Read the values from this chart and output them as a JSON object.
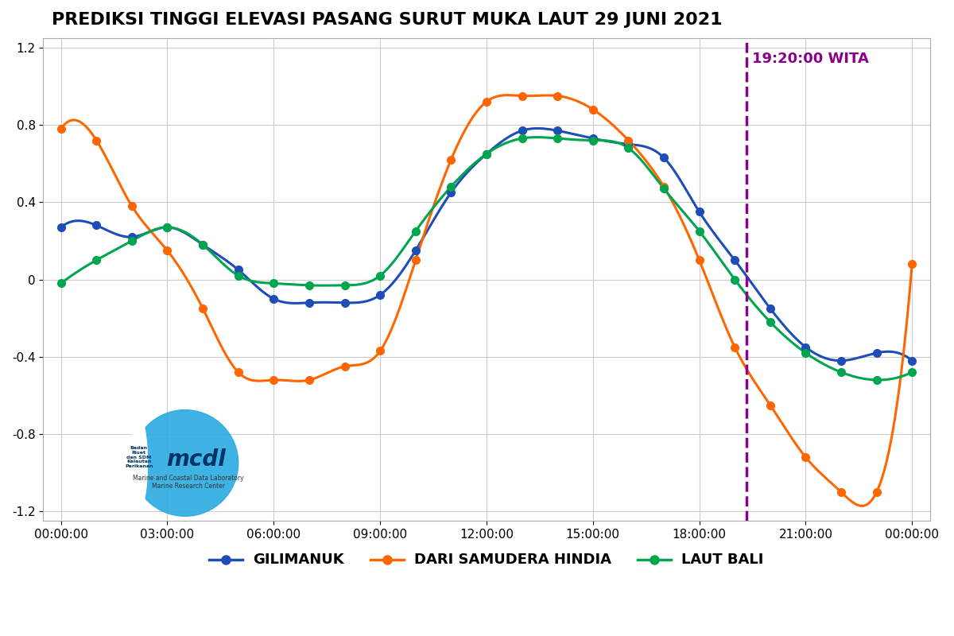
{
  "title": "PREDIKSI TINGGI ELEVASI PASANG SURUT MUKA LAUT 29 JUNI 2021",
  "title_fontsize": 16,
  "xlabel": "",
  "ylabel": "",
  "ylim": [
    -1.25,
    1.25
  ],
  "yticks": [
    -1.2,
    -0.8,
    -0.4,
    0.0,
    0.4,
    0.8,
    1.2
  ],
  "ytick_labels": [
    "-1.2",
    "-0.8",
    "-0.4",
    "0",
    "0.4",
    "0.8",
    "1.2"
  ],
  "xticks": [
    0,
    3,
    6,
    9,
    12,
    15,
    18,
    21,
    24
  ],
  "xtick_labels": [
    "00:00:00",
    "03:00:00",
    "06:00:00",
    "09:00:00",
    "12:00:00",
    "15:00:00",
    "18:00:00",
    "21:00:00",
    "00:00:00"
  ],
  "vline_x": 19.333,
  "vline_label": "19:20:00 WITA",
  "vline_color": "#8B008B",
  "background_color": "#ffffff",
  "grid_color": "#cccccc",
  "legend_labels": [
    "GILIMANUK",
    "DARI SAMUDERA HINDIA",
    "LAUT BALI"
  ],
  "legend_colors": [
    "#1e4db7",
    "#ff6600",
    "#00a550"
  ],
  "gilimanuk_x": [
    0,
    1,
    2,
    3,
    4,
    5,
    6,
    7,
    8,
    9,
    10,
    11,
    12,
    13,
    14,
    15,
    16,
    17,
    18,
    19,
    20,
    21,
    22,
    23,
    24
  ],
  "gilimanuk_y": [
    0.27,
    0.28,
    0.22,
    0.27,
    0.18,
    0.05,
    -0.1,
    -0.12,
    -0.12,
    -0.08,
    0.15,
    0.45,
    0.65,
    0.77,
    0.77,
    0.73,
    0.7,
    0.63,
    0.35,
    0.1,
    -0.15,
    -0.35,
    -0.42,
    -0.38,
    -0.42
  ],
  "samudera_x": [
    0,
    1,
    2,
    3,
    4,
    5,
    6,
    7,
    8,
    9,
    10,
    11,
    12,
    13,
    14,
    15,
    16,
    17,
    18,
    19,
    20,
    21,
    22,
    23,
    24
  ],
  "samudera_y": [
    0.78,
    0.72,
    0.38,
    0.15,
    -0.15,
    -0.48,
    -0.52,
    -0.52,
    -0.45,
    -0.37,
    0.1,
    0.62,
    0.92,
    0.95,
    0.95,
    0.88,
    0.72,
    0.48,
    0.1,
    -0.35,
    -0.65,
    -0.92,
    -1.1,
    -1.1,
    0.08
  ],
  "lautbali_x": [
    0,
    1,
    2,
    3,
    4,
    5,
    6,
    7,
    8,
    9,
    10,
    11,
    12,
    13,
    14,
    15,
    16,
    17,
    18,
    19,
    20,
    21,
    22,
    23,
    24
  ],
  "lautbali_y": [
    -0.02,
    0.1,
    0.2,
    0.27,
    0.18,
    0.02,
    -0.02,
    -0.03,
    -0.03,
    0.02,
    0.25,
    0.48,
    0.65,
    0.73,
    0.73,
    0.72,
    0.68,
    0.47,
    0.25,
    0.0,
    -0.22,
    -0.38,
    -0.48,
    -0.52,
    -0.48
  ]
}
